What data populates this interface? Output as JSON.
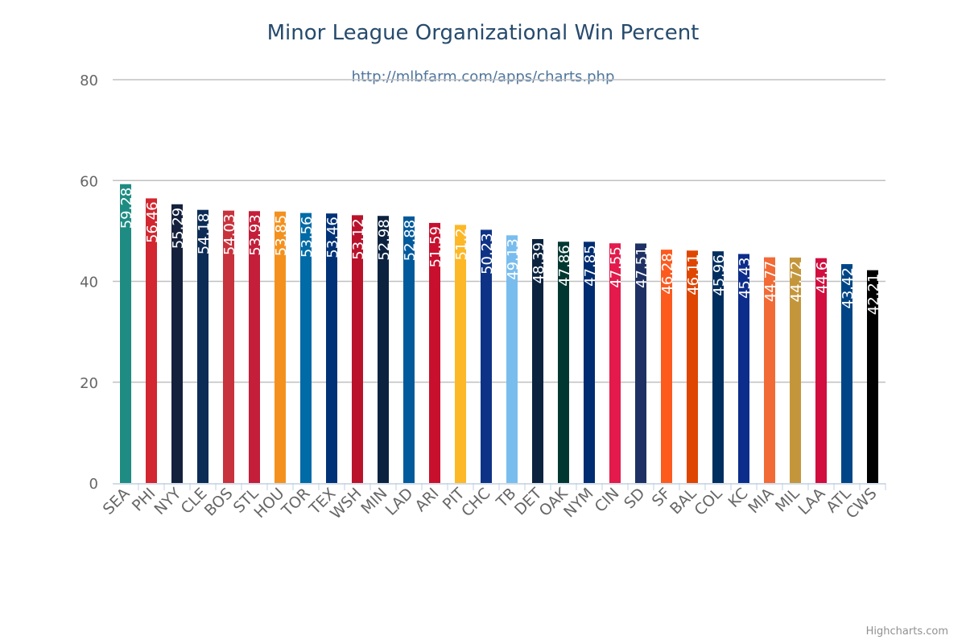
{
  "chart_data": {
    "type": "bar",
    "title": "Minor League Organizational Win Percent",
    "subtitle": "http://mlbfarm.com/apps/charts.php",
    "categories": [
      "SEA",
      "PHI",
      "NYY",
      "CLE",
      "BOS",
      "STL",
      "HOU",
      "TOR",
      "TEX",
      "WSH",
      "MIN",
      "LAD",
      "ARI",
      "PIT",
      "CHC",
      "TB",
      "DET",
      "OAK",
      "NYM",
      "CIN",
      "SD",
      "SF",
      "BAL",
      "COL",
      "KC",
      "MIA",
      "MIL",
      "LAA",
      "ATL",
      "CWS"
    ],
    "values": [
      59.28,
      56.46,
      55.29,
      54.18,
      54.03,
      53.93,
      53.85,
      53.56,
      53.46,
      53.12,
      52.98,
      52.88,
      51.59,
      51.2,
      50.23,
      49.13,
      48.39,
      47.86,
      47.85,
      47.55,
      47.51,
      46.28,
      46.11,
      45.96,
      45.43,
      44.77,
      44.72,
      44.6,
      43.42,
      42.21
    ],
    "colors": [
      "#1E8C82",
      "#D22630",
      "#14213D",
      "#0C2C56",
      "#C8323C",
      "#C41E3A",
      "#F4911E",
      "#006BA6",
      "#003278",
      "#BA122B",
      "#0C2340",
      "#005A9C",
      "#C8102E",
      "#FDB827",
      "#0E3386",
      "#79BDEE",
      "#0C2340",
      "#003831",
      "#002D72",
      "#E31A4B",
      "#1F3164",
      "#FD5A1E",
      "#DF4601",
      "#002F5F",
      "#0C2D8C",
      "#F26A36",
      "#C4963C",
      "#D10E3F",
      "#004687",
      "#000000"
    ],
    "ylim": [
      0,
      80
    ],
    "yticks": [
      0,
      20,
      40,
      60,
      80
    ],
    "xlabel": "",
    "ylabel": "",
    "grid": true,
    "legend": "none"
  },
  "credit": "Highcharts.com"
}
